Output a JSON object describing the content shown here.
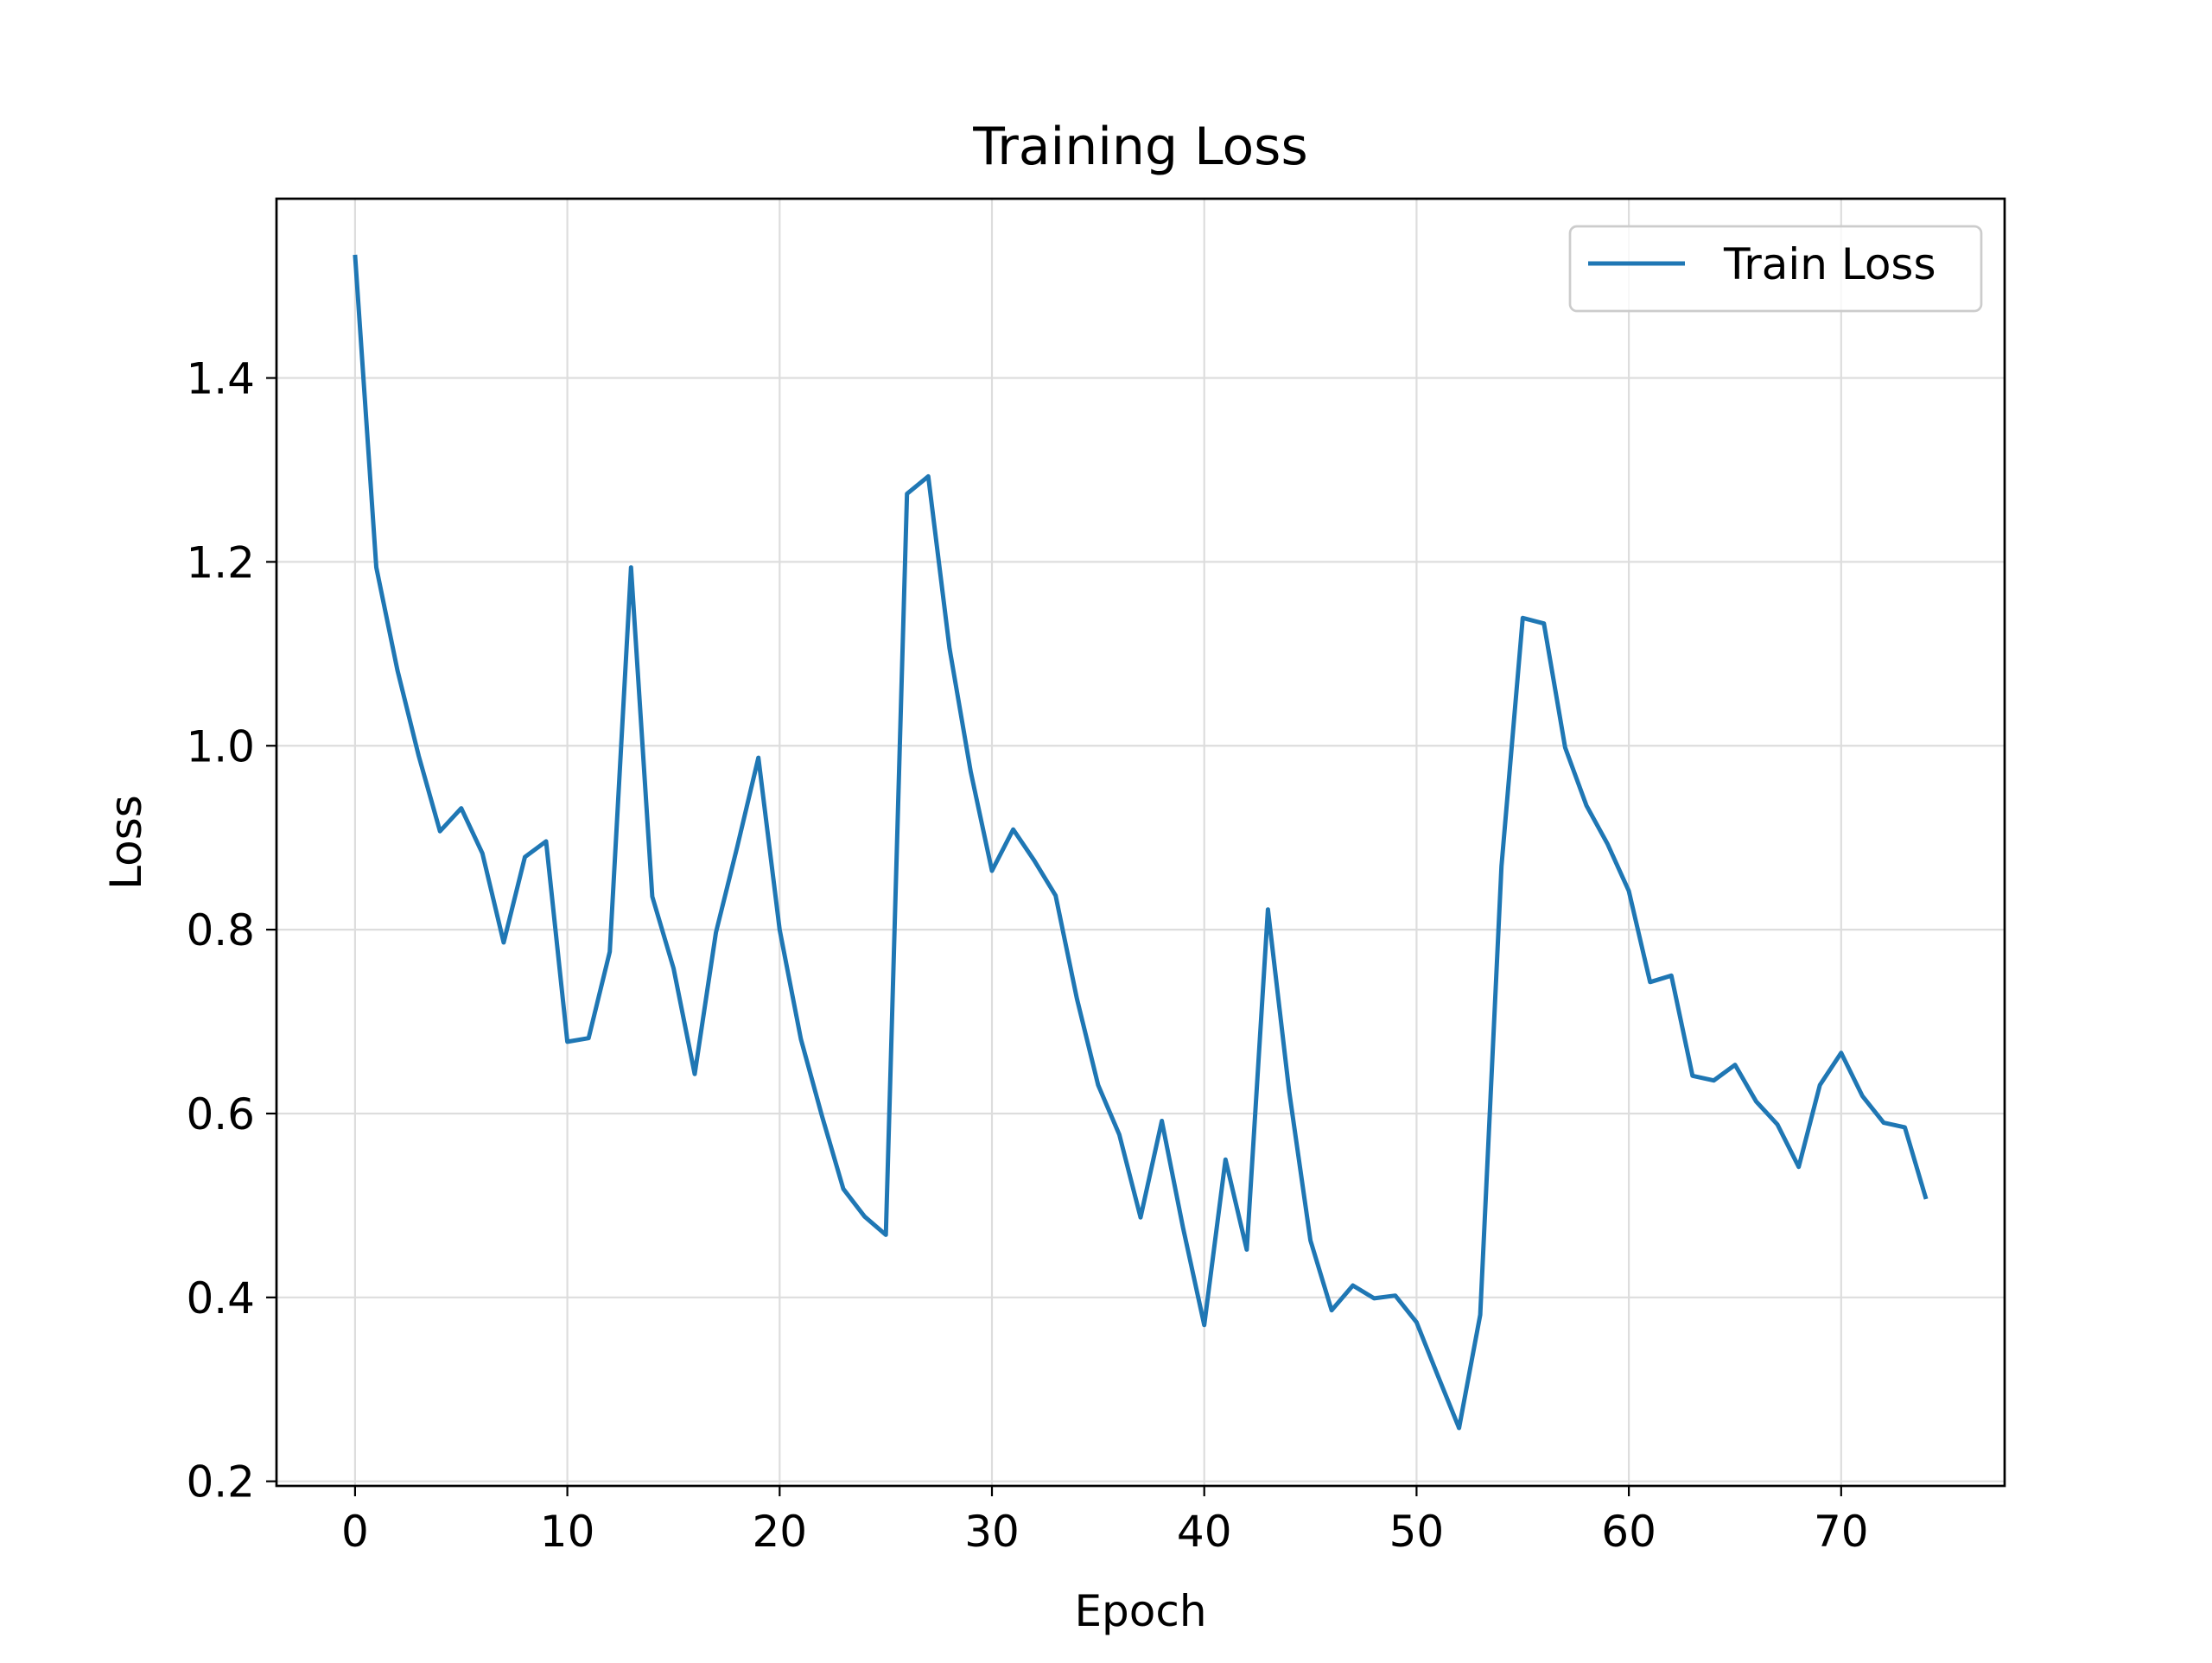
{
  "chart_data": {
    "type": "line",
    "title": "Training Loss",
    "xlabel": "Epoch",
    "ylabel": "Loss",
    "xlim": [
      -3.7,
      77.7
    ],
    "ylim": [
      0.195,
      1.595
    ],
    "xticks": [
      0,
      10,
      20,
      30,
      40,
      50,
      60,
      70
    ],
    "yticks": [
      0.2,
      0.4,
      0.6,
      0.8,
      1.0,
      1.2,
      1.4
    ],
    "ytick_labels": [
      "0.2",
      "0.4",
      "0.6",
      "0.8",
      "1.0",
      "1.2",
      "1.4"
    ],
    "grid": true,
    "legend_position": "upper right",
    "series": [
      {
        "name": "Train Loss",
        "color": "#1f77b4",
        "x": [
          0,
          1,
          2,
          3,
          4,
          5,
          6,
          7,
          8,
          9,
          10,
          11,
          12,
          13,
          14,
          15,
          16,
          17,
          18,
          19,
          20,
          21,
          22,
          23,
          24,
          25,
          26,
          27,
          28,
          29,
          30,
          31,
          32,
          33,
          34,
          35,
          36,
          37,
          38,
          39,
          40,
          41,
          42,
          43,
          44,
          45,
          46,
          47,
          48,
          49,
          50,
          51,
          52,
          53,
          54,
          55,
          56,
          57,
          58,
          59,
          60,
          61,
          62,
          63,
          64,
          65,
          66,
          67,
          68,
          69,
          70,
          71,
          72,
          73,
          74
        ],
        "values": [
          1.534,
          1.194,
          1.082,
          0.989,
          0.907,
          0.932,
          0.883,
          0.786,
          0.879,
          0.896,
          0.678,
          0.682,
          0.776,
          1.194,
          0.836,
          0.758,
          0.643,
          0.797,
          0.89,
          0.987,
          0.8,
          0.681,
          0.597,
          0.518,
          0.488,
          0.468,
          1.274,
          1.293,
          1.106,
          0.972,
          0.864,
          0.909,
          0.875,
          0.837,
          0.725,
          0.631,
          0.577,
          0.487,
          0.592,
          0.476,
          0.37,
          0.55,
          0.452,
          0.822,
          0.624,
          0.462,
          0.386,
          0.413,
          0.399,
          0.402,
          0.373,
          0.315,
          0.258,
          0.381,
          0.869,
          1.139,
          1.133,
          0.998,
          0.935,
          0.893,
          0.842,
          0.743,
          0.75,
          0.641,
          0.636,
          0.653,
          0.613,
          0.588,
          0.542,
          0.631,
          0.666,
          0.619,
          0.59,
          0.585,
          0.507
        ]
      }
    ]
  }
}
